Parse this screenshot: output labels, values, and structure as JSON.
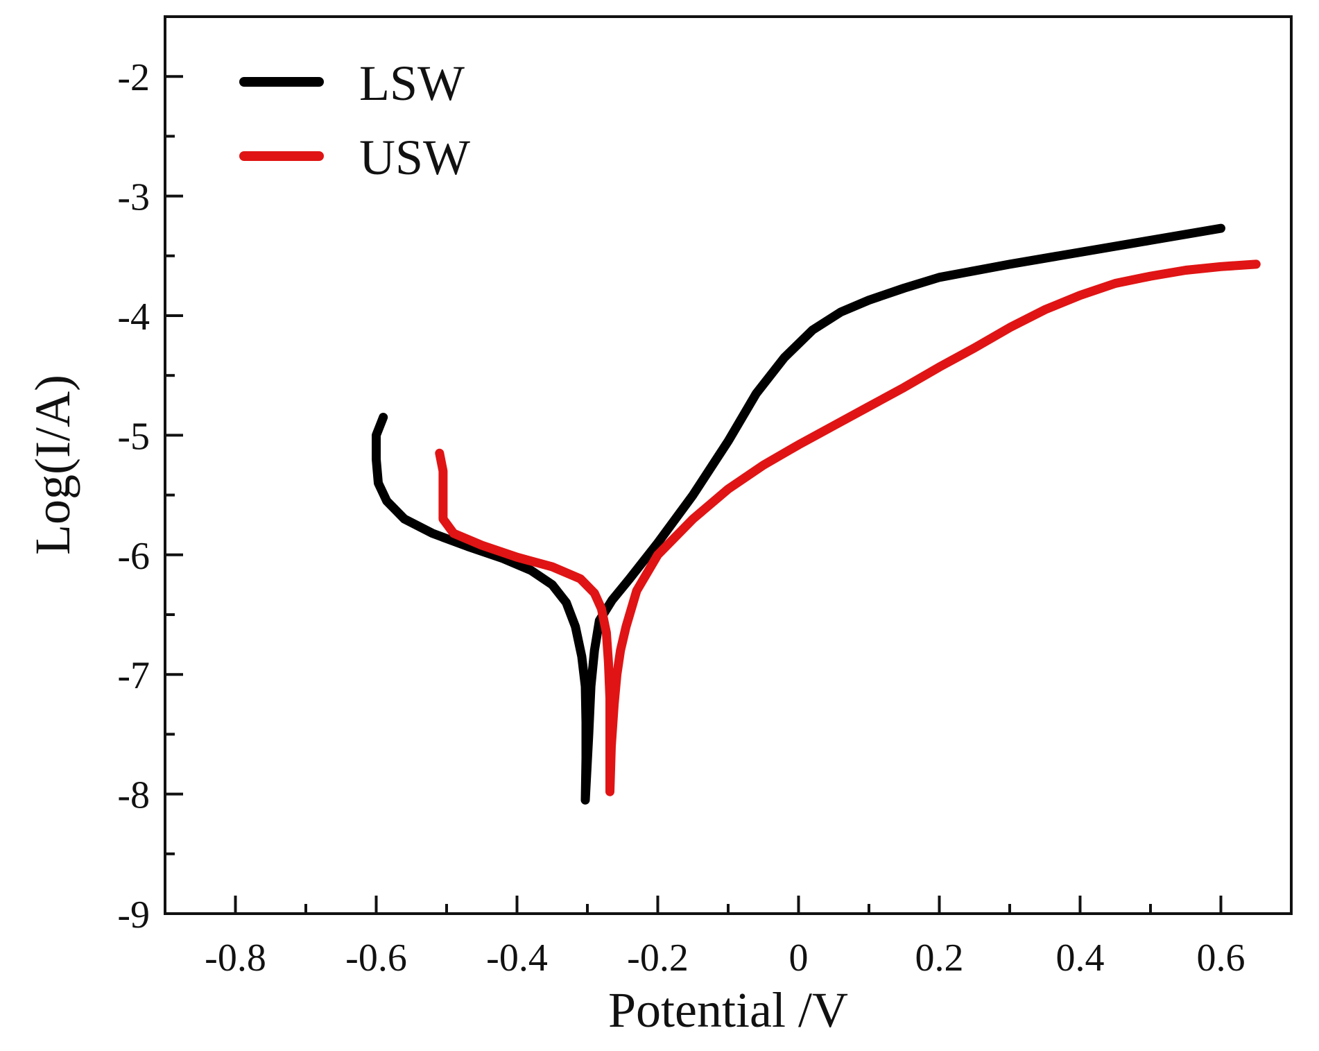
{
  "chart_data": {
    "type": "line",
    "title": "",
    "xlabel": "Potential /V",
    "ylabel": "Log(I/A)",
    "xlim": [
      -0.9,
      0.7
    ],
    "ylim": [
      -9,
      -1.5
    ],
    "grid": false,
    "legend_position": "top-left",
    "x_ticks": [
      -0.8,
      -0.6,
      -0.4,
      -0.2,
      0,
      0.2,
      0.4,
      0.6
    ],
    "x_tick_labels": [
      "-0.8",
      "-0.6",
      "-0.4",
      "-0.2",
      "0",
      "0.2",
      "0.4",
      "0.6"
    ],
    "y_ticks": [
      -9,
      -8,
      -7,
      -6,
      -5,
      -4,
      -3,
      -2
    ],
    "y_tick_labels": [
      "-9",
      "-8",
      "-7",
      "-6",
      "-5",
      "-4",
      "-3",
      "-2"
    ],
    "series": [
      {
        "name": "LSW",
        "color": "#000000",
        "points": [
          [
            -0.59,
            -4.85
          ],
          [
            -0.6,
            -5.0
          ],
          [
            -0.6,
            -5.2
          ],
          [
            -0.597,
            -5.4
          ],
          [
            -0.585,
            -5.55
          ],
          [
            -0.56,
            -5.7
          ],
          [
            -0.52,
            -5.82
          ],
          [
            -0.47,
            -5.93
          ],
          [
            -0.42,
            -6.03
          ],
          [
            -0.38,
            -6.13
          ],
          [
            -0.35,
            -6.25
          ],
          [
            -0.33,
            -6.4
          ],
          [
            -0.317,
            -6.6
          ],
          [
            -0.308,
            -6.85
          ],
          [
            -0.303,
            -7.1
          ],
          [
            -0.302,
            -7.4
          ],
          [
            -0.302,
            -7.7
          ],
          [
            -0.303,
            -8.05
          ],
          [
            -0.298,
            -7.5
          ],
          [
            -0.295,
            -7.1
          ],
          [
            -0.29,
            -6.8
          ],
          [
            -0.283,
            -6.55
          ],
          [
            -0.265,
            -6.38
          ],
          [
            -0.24,
            -6.2
          ],
          [
            -0.2,
            -5.9
          ],
          [
            -0.15,
            -5.5
          ],
          [
            -0.1,
            -5.05
          ],
          [
            -0.06,
            -4.65
          ],
          [
            -0.02,
            -4.35
          ],
          [
            0.02,
            -4.12
          ],
          [
            0.06,
            -3.97
          ],
          [
            0.1,
            -3.87
          ],
          [
            0.15,
            -3.77
          ],
          [
            0.2,
            -3.68
          ],
          [
            0.3,
            -3.57
          ],
          [
            0.4,
            -3.47
          ],
          [
            0.5,
            -3.37
          ],
          [
            0.6,
            -3.27
          ]
        ]
      },
      {
        "name": "USW",
        "color": "#e01414",
        "points": [
          [
            -0.51,
            -5.15
          ],
          [
            -0.505,
            -5.3
          ],
          [
            -0.505,
            -5.5
          ],
          [
            -0.505,
            -5.7
          ],
          [
            -0.49,
            -5.82
          ],
          [
            -0.45,
            -5.92
          ],
          [
            -0.4,
            -6.02
          ],
          [
            -0.35,
            -6.1
          ],
          [
            -0.31,
            -6.2
          ],
          [
            -0.29,
            -6.32
          ],
          [
            -0.28,
            -6.45
          ],
          [
            -0.273,
            -6.65
          ],
          [
            -0.27,
            -6.9
          ],
          [
            -0.268,
            -7.2
          ],
          [
            -0.268,
            -7.5
          ],
          [
            -0.268,
            -7.98
          ],
          [
            -0.266,
            -7.6
          ],
          [
            -0.262,
            -7.25
          ],
          [
            -0.258,
            -7.0
          ],
          [
            -0.253,
            -6.8
          ],
          [
            -0.245,
            -6.6
          ],
          [
            -0.23,
            -6.3
          ],
          [
            -0.2,
            -6.0
          ],
          [
            -0.15,
            -5.7
          ],
          [
            -0.1,
            -5.45
          ],
          [
            -0.05,
            -5.25
          ],
          [
            0.0,
            -5.08
          ],
          [
            0.05,
            -4.92
          ],
          [
            0.1,
            -4.76
          ],
          [
            0.15,
            -4.6
          ],
          [
            0.2,
            -4.43
          ],
          [
            0.25,
            -4.27
          ],
          [
            0.3,
            -4.1
          ],
          [
            0.35,
            -3.95
          ],
          [
            0.4,
            -3.83
          ],
          [
            0.45,
            -3.73
          ],
          [
            0.5,
            -3.67
          ],
          [
            0.55,
            -3.62
          ],
          [
            0.6,
            -3.59
          ],
          [
            0.65,
            -3.57
          ]
        ]
      }
    ]
  }
}
